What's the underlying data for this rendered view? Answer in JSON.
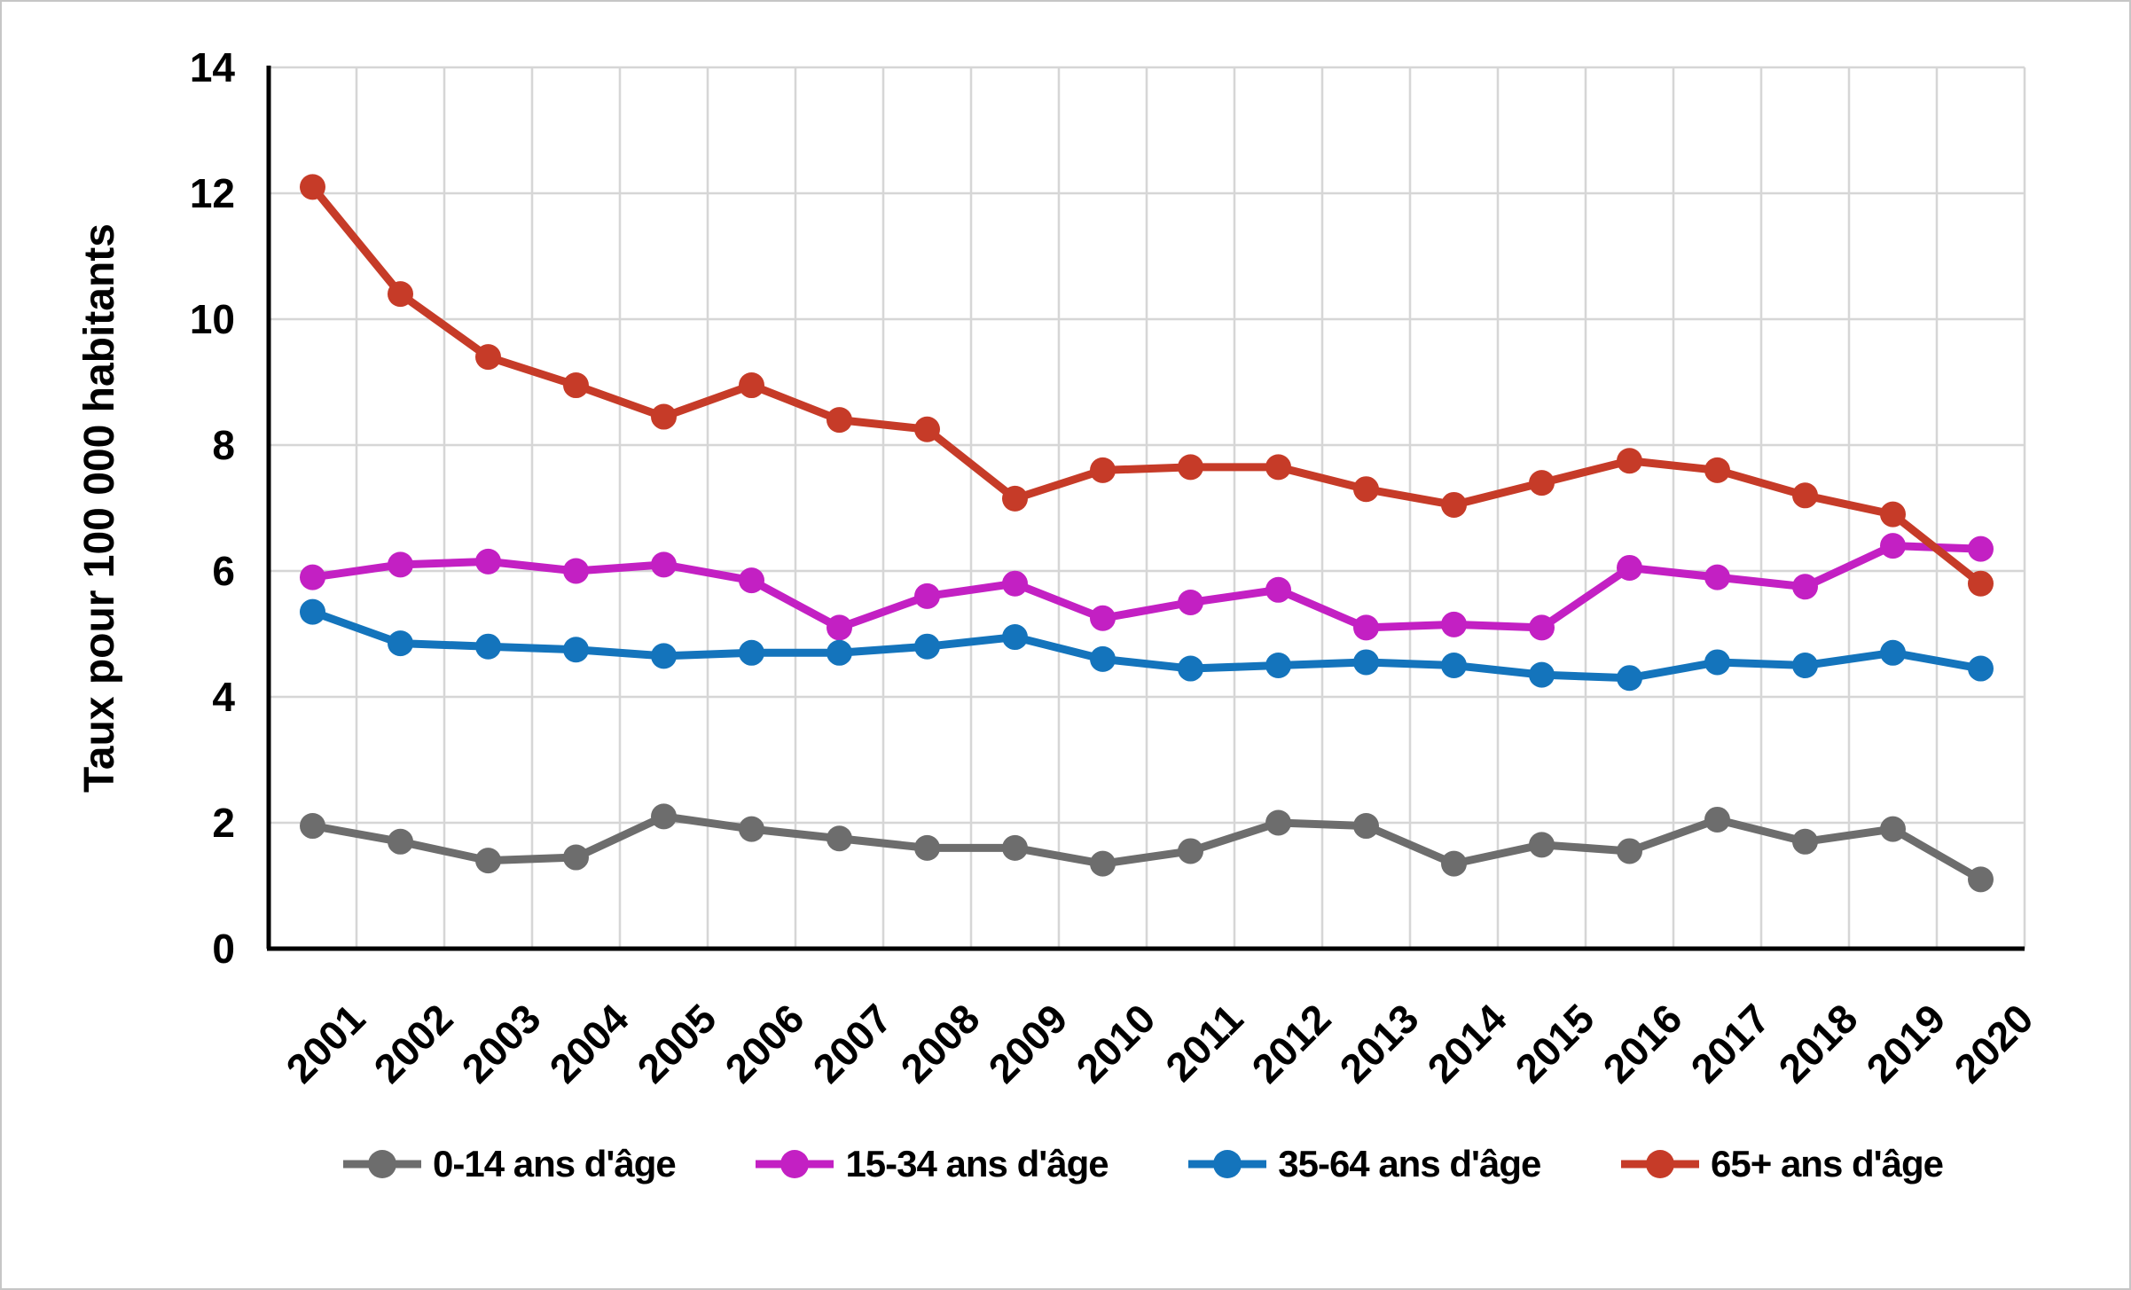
{
  "chart_data": {
    "type": "line",
    "title": "",
    "xlabel": "",
    "ylabel": "Taux pour 100 000 habitants",
    "ylim": [
      0,
      14
    ],
    "ytick_step": 2,
    "grid": true,
    "legend_position": "bottom",
    "categories": [
      "2001",
      "2002",
      "2003",
      "2004",
      "2005",
      "2006",
      "2007",
      "2008",
      "2009",
      "2010",
      "2011",
      "2012",
      "2013",
      "2014",
      "2015",
      "2016",
      "2017",
      "2018",
      "2019",
      "2020"
    ],
    "series": [
      {
        "name": "0-14 ans d'âge",
        "color": "#6d6d6d",
        "values": [
          1.95,
          1.7,
          1.4,
          1.45,
          2.1,
          1.9,
          1.75,
          1.6,
          1.6,
          1.35,
          1.55,
          2.0,
          1.95,
          1.35,
          1.65,
          1.55,
          2.05,
          1.7,
          1.9,
          1.1
        ]
      },
      {
        "name": "15-34 ans d'âge",
        "color": "#c320c3",
        "values": [
          5.9,
          6.1,
          6.15,
          6.0,
          6.1,
          5.85,
          5.1,
          5.6,
          5.8,
          5.25,
          5.5,
          5.7,
          5.1,
          5.15,
          5.1,
          6.05,
          5.9,
          5.75,
          6.4,
          6.35
        ]
      },
      {
        "name": "35-64 ans d'âge",
        "color": "#1474bc",
        "values": [
          5.35,
          4.85,
          4.8,
          4.75,
          4.65,
          4.7,
          4.7,
          4.8,
          4.95,
          4.6,
          4.45,
          4.5,
          4.55,
          4.5,
          4.35,
          4.3,
          4.55,
          4.5,
          4.7,
          4.45
        ]
      },
      {
        "name": "65+ ans d'âge",
        "color": "#c63b28",
        "values": [
          12.1,
          10.4,
          9.4,
          8.95,
          8.45,
          8.95,
          8.4,
          8.25,
          7.15,
          7.6,
          7.65,
          7.65,
          7.3,
          7.05,
          7.4,
          7.75,
          7.6,
          7.2,
          6.9,
          5.8
        ]
      }
    ],
    "styles": {
      "gridline_color": "#d6d6d6",
      "axis_color": "#000000",
      "label_color": "#000000",
      "background": "#ffffff"
    }
  }
}
